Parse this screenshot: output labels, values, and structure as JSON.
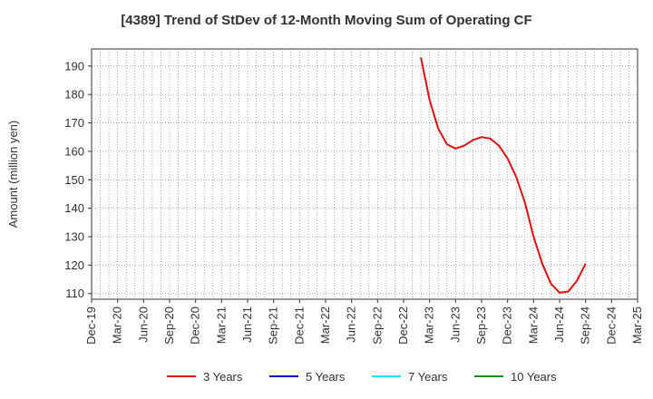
{
  "chart_data": {
    "type": "line",
    "title": "[4389]  Trend of StDev of 12-Month Moving Sum of Operating CF",
    "xlabel": "",
    "ylabel": "Amount (million yen)",
    "x_ticks": [
      "Dec-19",
      "Mar-20",
      "Jun-20",
      "Sep-20",
      "Dec-20",
      "Mar-21",
      "Jun-21",
      "Sep-21",
      "Dec-21",
      "Mar-22",
      "Jun-22",
      "Sep-22",
      "Dec-22",
      "Mar-23",
      "Jun-23",
      "Sep-23",
      "Dec-23",
      "Mar-24",
      "Jun-24",
      "Sep-24",
      "Dec-24",
      "Mar-25"
    ],
    "xlim": [
      "2019-12",
      "2025-03"
    ],
    "ylim": [
      108,
      196
    ],
    "y_ticks": [
      110,
      120,
      130,
      140,
      150,
      160,
      170,
      180,
      190
    ],
    "grid": true,
    "legend_position": "bottom",
    "series": [
      {
        "name": "3 Years",
        "color": "#dd1111",
        "points": [
          [
            "2023-02",
            193
          ],
          [
            "2023-03",
            178
          ],
          [
            "2023-04",
            168
          ],
          [
            "2023-05",
            162.5
          ],
          [
            "2023-06",
            161
          ],
          [
            "2023-07",
            162
          ],
          [
            "2023-08",
            164
          ],
          [
            "2023-09",
            165
          ],
          [
            "2023-10",
            164.5
          ],
          [
            "2023-11",
            162
          ],
          [
            "2023-12",
            157.5
          ],
          [
            "2024-01",
            151
          ],
          [
            "2024-02",
            142
          ],
          [
            "2024-03",
            130
          ],
          [
            "2024-04",
            120.5
          ],
          [
            "2024-05",
            113.5
          ],
          [
            "2024-06",
            110.3
          ],
          [
            "2024-07",
            110.7
          ],
          [
            "2024-08",
            114.5
          ],
          [
            "2024-09",
            120.5
          ]
        ]
      },
      {
        "name": "5 Years",
        "color": "#0000cc",
        "points": []
      },
      {
        "name": "7 Years",
        "color": "#00e5ee",
        "points": []
      },
      {
        "name": "10 Years",
        "color": "#228b22",
        "points": []
      }
    ]
  }
}
